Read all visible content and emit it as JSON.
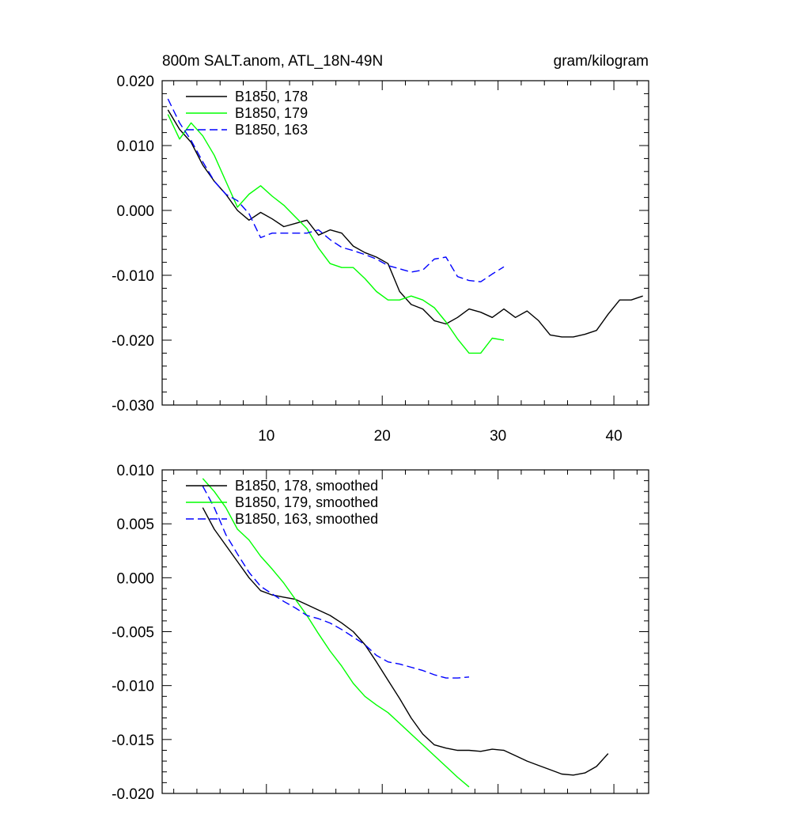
{
  "chart_data": [
    {
      "type": "line",
      "title_left": "800m SALT.anom, ATL_18N-49N",
      "title_right": "gram/kilogram",
      "xlabel": "",
      "ylabel": "",
      "xlim": [
        1,
        43
      ],
      "ylim": [
        -0.03,
        0.02
      ],
      "xticks": [
        10,
        20,
        30,
        40
      ],
      "xtick_labels": [
        "10",
        "20",
        "30",
        "40"
      ],
      "yticks": [
        0.02,
        0.01,
        0.0,
        -0.01,
        -0.02,
        -0.03
      ],
      "ytick_labels": [
        "0.020",
        "0.010",
        "0.000",
        "-0.010",
        "-0.020",
        "-0.030"
      ],
      "legend_position": "top-left",
      "series": [
        {
          "name": "B1850, 178",
          "color": "#000000",
          "dash": "solid",
          "x": [
            1.5,
            2.5,
            3.5,
            4.5,
            5.5,
            6.5,
            7.5,
            8.5,
            9.5,
            10.5,
            11.5,
            12.5,
            13.5,
            14.5,
            15.5,
            16.5,
            17.5,
            18.5,
            19.5,
            20.5,
            21.5,
            22.5,
            23.5,
            24.5,
            25.5,
            26.5,
            27.5,
            28.5,
            29.5,
            30.5,
            31.5,
            32.5,
            33.5,
            34.5,
            35.5,
            36.5,
            37.5,
            38.5,
            39.5,
            40.5,
            41.5,
            42.5
          ],
          "y": [
            0.0155,
            0.0125,
            0.0105,
            0.007,
            0.0045,
            0.0025,
            0.0,
            -0.0015,
            -0.0003,
            -0.0013,
            -0.0025,
            -0.002,
            -0.0015,
            -0.0038,
            -0.003,
            -0.0035,
            -0.0055,
            -0.0065,
            -0.0072,
            -0.0082,
            -0.0125,
            -0.0145,
            -0.0152,
            -0.017,
            -0.0175,
            -0.0165,
            -0.0152,
            -0.0157,
            -0.0165,
            -0.0152,
            -0.0165,
            -0.0155,
            -0.017,
            -0.0192,
            -0.0195,
            -0.0195,
            -0.0191,
            -0.0185,
            -0.016,
            -0.0138,
            -0.0138,
            -0.0132
          ]
        },
        {
          "name": "B1850, 179",
          "color": "#00ff00",
          "dash": "solid",
          "x": [
            1.5,
            2.5,
            3.5,
            4.5,
            5.5,
            6.5,
            7.5,
            8.5,
            9.5,
            10.5,
            11.5,
            12.5,
            13.5,
            14.5,
            15.5,
            16.5,
            17.5,
            18.5,
            19.5,
            20.5,
            21.5,
            22.5,
            23.5,
            24.5,
            25.5,
            26.5,
            27.5,
            28.5,
            29.5,
            30.5
          ],
          "y": [
            0.0148,
            0.011,
            0.0135,
            0.0115,
            0.0085,
            0.0045,
            0.0005,
            0.0025,
            0.0038,
            0.0022,
            0.0008,
            -0.001,
            -0.0028,
            -0.0058,
            -0.0082,
            -0.0088,
            -0.0088,
            -0.0105,
            -0.0125,
            -0.0138,
            -0.0138,
            -0.0132,
            -0.0138,
            -0.015,
            -0.0172,
            -0.0198,
            -0.022,
            -0.022,
            -0.0197,
            -0.02
          ]
        },
        {
          "name": "B1850, 163",
          "color": "#0000ff",
          "dash": "dashed",
          "x": [
            1.5,
            2.5,
            3.5,
            4.5,
            5.5,
            6.5,
            7.5,
            8.5,
            9.5,
            10.5,
            11.5,
            12.5,
            13.5,
            14.5,
            15.5,
            16.5,
            17.5,
            18.5,
            19.5,
            20.5,
            21.5,
            22.5,
            23.5,
            24.5,
            25.5,
            26.5,
            27.5,
            28.5,
            29.5,
            30.5
          ],
          "y": [
            0.0172,
            0.0135,
            0.0108,
            0.0075,
            0.0045,
            0.0025,
            0.0015,
            -0.0005,
            -0.0042,
            -0.0035,
            -0.0035,
            -0.0035,
            -0.0035,
            -0.003,
            -0.0045,
            -0.0057,
            -0.0062,
            -0.0068,
            -0.0075,
            -0.0085,
            -0.009,
            -0.0095,
            -0.0092,
            -0.0075,
            -0.0072,
            -0.0102,
            -0.0108,
            -0.011,
            -0.0098,
            -0.0087
          ]
        }
      ]
    },
    {
      "type": "line",
      "title_left": "",
      "title_right": "",
      "xlabel": "",
      "ylabel": "",
      "xlim": [
        1,
        43
      ],
      "ylim": [
        -0.02,
        0.01
      ],
      "xticks": [
        10,
        20,
        30,
        40
      ],
      "xtick_labels": [],
      "yticks": [
        0.01,
        0.005,
        0.0,
        -0.005,
        -0.01,
        -0.015,
        -0.02
      ],
      "ytick_labels": [
        "0.010",
        "0.005",
        "0.000",
        "-0.005",
        "-0.010",
        "-0.015",
        "-0.020"
      ],
      "legend_position": "top-left",
      "series": [
        {
          "name": "B1850, 178, smoothed",
          "color": "#000000",
          "dash": "solid",
          "x": [
            4.5,
            5.5,
            6.5,
            7.5,
            8.5,
            9.5,
            10.5,
            11.5,
            12.5,
            13.5,
            14.5,
            15.5,
            16.5,
            17.5,
            18.5,
            19.5,
            20.5,
            21.5,
            22.5,
            23.5,
            24.5,
            25.5,
            26.5,
            27.5,
            28.5,
            29.5,
            30.5,
            31.5,
            32.5,
            33.5,
            34.5,
            35.5,
            36.5,
            37.5,
            38.5,
            39.5
          ],
          "y": [
            0.0065,
            0.0045,
            0.003,
            0.0015,
            0.0,
            -0.0012,
            -0.0016,
            -0.0018,
            -0.002,
            -0.0025,
            -0.003,
            -0.0035,
            -0.0042,
            -0.005,
            -0.0062,
            -0.0078,
            -0.0095,
            -0.0112,
            -0.013,
            -0.0145,
            -0.0155,
            -0.0158,
            -0.016,
            -0.016,
            -0.0161,
            -0.0159,
            -0.016,
            -0.0165,
            -0.017,
            -0.0174,
            -0.0178,
            -0.0182,
            -0.0183,
            -0.0181,
            -0.0175,
            -0.0163
          ]
        },
        {
          "name": "B1850, 179, smoothed",
          "color": "#00ff00",
          "dash": "solid",
          "x": [
            4.5,
            5.5,
            6.5,
            7.5,
            8.5,
            9.5,
            10.5,
            11.5,
            12.5,
            13.5,
            14.5,
            15.5,
            16.5,
            17.5,
            18.5,
            19.5,
            20.5,
            21.5,
            22.5,
            23.5,
            24.5,
            25.5,
            26.5,
            27.5
          ],
          "y": [
            0.0092,
            0.008,
            0.0065,
            0.0045,
            0.0035,
            0.002,
            0.0008,
            -0.0005,
            -0.002,
            -0.0035,
            -0.0052,
            -0.0068,
            -0.0082,
            -0.0098,
            -0.011,
            -0.0118,
            -0.0125,
            -0.0135,
            -0.0145,
            -0.0155,
            -0.0165,
            -0.0175,
            -0.0185,
            -0.0194
          ]
        },
        {
          "name": "B1850, 163, smoothed",
          "color": "#0000ff",
          "dash": "dashed",
          "x": [
            4.5,
            5.5,
            6.5,
            7.5,
            8.5,
            9.5,
            10.5,
            11.5,
            12.5,
            13.5,
            14.5,
            15.5,
            16.5,
            17.5,
            18.5,
            19.5,
            20.5,
            21.5,
            22.5,
            23.5,
            24.5,
            25.5,
            26.5,
            27.5
          ],
          "y": [
            0.0085,
            0.0065,
            0.004,
            0.0022,
            0.0005,
            -0.0008,
            -0.0015,
            -0.0022,
            -0.0028,
            -0.0035,
            -0.0038,
            -0.0042,
            -0.0048,
            -0.0055,
            -0.0062,
            -0.0072,
            -0.0078,
            -0.008,
            -0.0083,
            -0.0086,
            -0.009,
            -0.0093,
            -0.0093,
            -0.0092
          ]
        }
      ]
    }
  ]
}
